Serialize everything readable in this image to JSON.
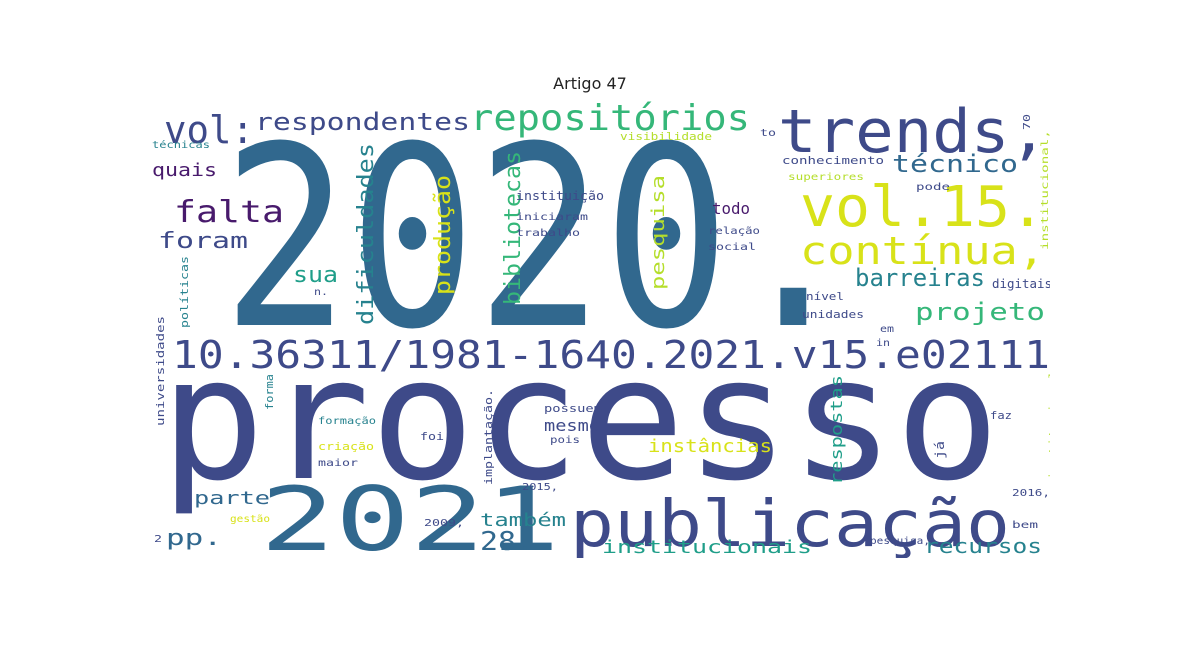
{
  "title": "Artigo 47",
  "palette": {
    "dark_purple": "#481a6c",
    "indigo": "#3e4a89",
    "blue": "#31688e",
    "teal": "#26828e",
    "green_teal": "#1f9e89",
    "green": "#35b779",
    "light_green": "#6ece58",
    "yellow_green": "#b5de2b",
    "yellow": "#d8e219"
  },
  "words": [
    {
      "text": "2020.",
      "color": "blue"
    },
    {
      "text": "processo",
      "color": "indigo"
    },
    {
      "text": "trends,",
      "color": "indigo"
    },
    {
      "text": "vol.15.",
      "color": "yellow"
    },
    {
      "text": "contínua,",
      "color": "yellow"
    },
    {
      "text": "publicação",
      "color": "indigo"
    },
    {
      "text": "2021",
      "color": "blue"
    },
    {
      "text": "10.36311/1981-1640.2021.v15.e02111",
      "color": "indigo"
    },
    {
      "text": "repositórios",
      "color": "green"
    },
    {
      "text": "vol:",
      "color": "indigo"
    },
    {
      "text": "respondentes",
      "color": "indigo"
    },
    {
      "text": "falta",
      "color": "dark_purple"
    },
    {
      "text": "foram",
      "color": "indigo"
    },
    {
      "text": "técnico",
      "color": "blue"
    },
    {
      "text": "barreiras",
      "color": "teal"
    },
    {
      "text": "projeto",
      "color": "green"
    },
    {
      "text": "dificuldades",
      "color": "teal"
    },
    {
      "text": "bibliotecas",
      "color": "green"
    },
    {
      "text": "produção",
      "color": "yellow"
    },
    {
      "text": "pesquisa",
      "color": "yellow_green"
    },
    {
      "text": "sua",
      "color": "green_teal"
    },
    {
      "text": "quais",
      "color": "dark_purple"
    },
    {
      "text": "pp.",
      "color": "blue"
    },
    {
      "text": "28.",
      "color": "blue"
    },
    {
      "text": "também",
      "color": "teal"
    },
    {
      "text": "institucionais",
      "color": "green_teal"
    },
    {
      "text": "recursos",
      "color": "teal"
    },
    {
      "text": "instâncias",
      "color": "yellow"
    },
    {
      "text": "parte",
      "color": "blue"
    },
    {
      "text": "mesmo",
      "color": "indigo"
    },
    {
      "text": "respostas",
      "color": "green_teal"
    },
    {
      "text": "todo",
      "color": "dark_purple"
    },
    {
      "text": "instituição",
      "color": "indigo"
    },
    {
      "text": "iniciaram",
      "color": "indigo"
    },
    {
      "text": "trabalho",
      "color": "indigo"
    },
    {
      "text": "relação",
      "color": "indigo"
    },
    {
      "text": "social",
      "color": "indigo"
    },
    {
      "text": "conhecimento",
      "color": "indigo"
    },
    {
      "text": "superiores",
      "color": "yellow_green"
    },
    {
      "text": "pode",
      "color": "indigo"
    },
    {
      "text": "digitais",
      "color": "indigo"
    },
    {
      "text": "nível",
      "color": "indigo"
    },
    {
      "text": "unidades",
      "color": "indigo"
    },
    {
      "text": "visibilidade",
      "color": "yellow_green"
    },
    {
      "text": "técnicas",
      "color": "teal"
    },
    {
      "text": "universidades",
      "color": "indigo"
    },
    {
      "text": "políticas",
      "color": "teal"
    },
    {
      "text": "formação",
      "color": "teal"
    },
    {
      "text": "criação",
      "color": "yellow"
    },
    {
      "text": "maior",
      "color": "indigo"
    },
    {
      "text": "foi",
      "color": "indigo"
    },
    {
      "text": "pois",
      "color": "indigo"
    },
    {
      "text": "possuem",
      "color": "indigo"
    },
    {
      "text": "implantação.",
      "color": "indigo"
    },
    {
      "text": "forma",
      "color": "teal"
    },
    {
      "text": "gestão",
      "color": "yellow"
    },
    {
      "text": "2009,",
      "color": "indigo"
    },
    {
      "text": "2015,",
      "color": "indigo"
    },
    {
      "text": "2016,",
      "color": "indigo"
    },
    {
      "text": "faz",
      "color": "indigo"
    },
    {
      "text": "bem",
      "color": "indigo"
    },
    {
      "text": "já",
      "color": "indigo"
    },
    {
      "text": "institucional,",
      "color": "yellow_green"
    },
    {
      "text": "institucional.",
      "color": "yellow_green"
    },
    {
      "text": "pesquisa,",
      "color": "indigo"
    },
    {
      "text": "em",
      "color": "indigo"
    },
    {
      "text": "in",
      "color": "indigo"
    },
    {
      "text": "n.",
      "color": "indigo"
    },
    {
      "text": "to",
      "color": "indigo"
    },
    {
      "text": "70",
      "color": "indigo"
    },
    {
      "text": "2",
      "color": "indigo"
    }
  ]
}
